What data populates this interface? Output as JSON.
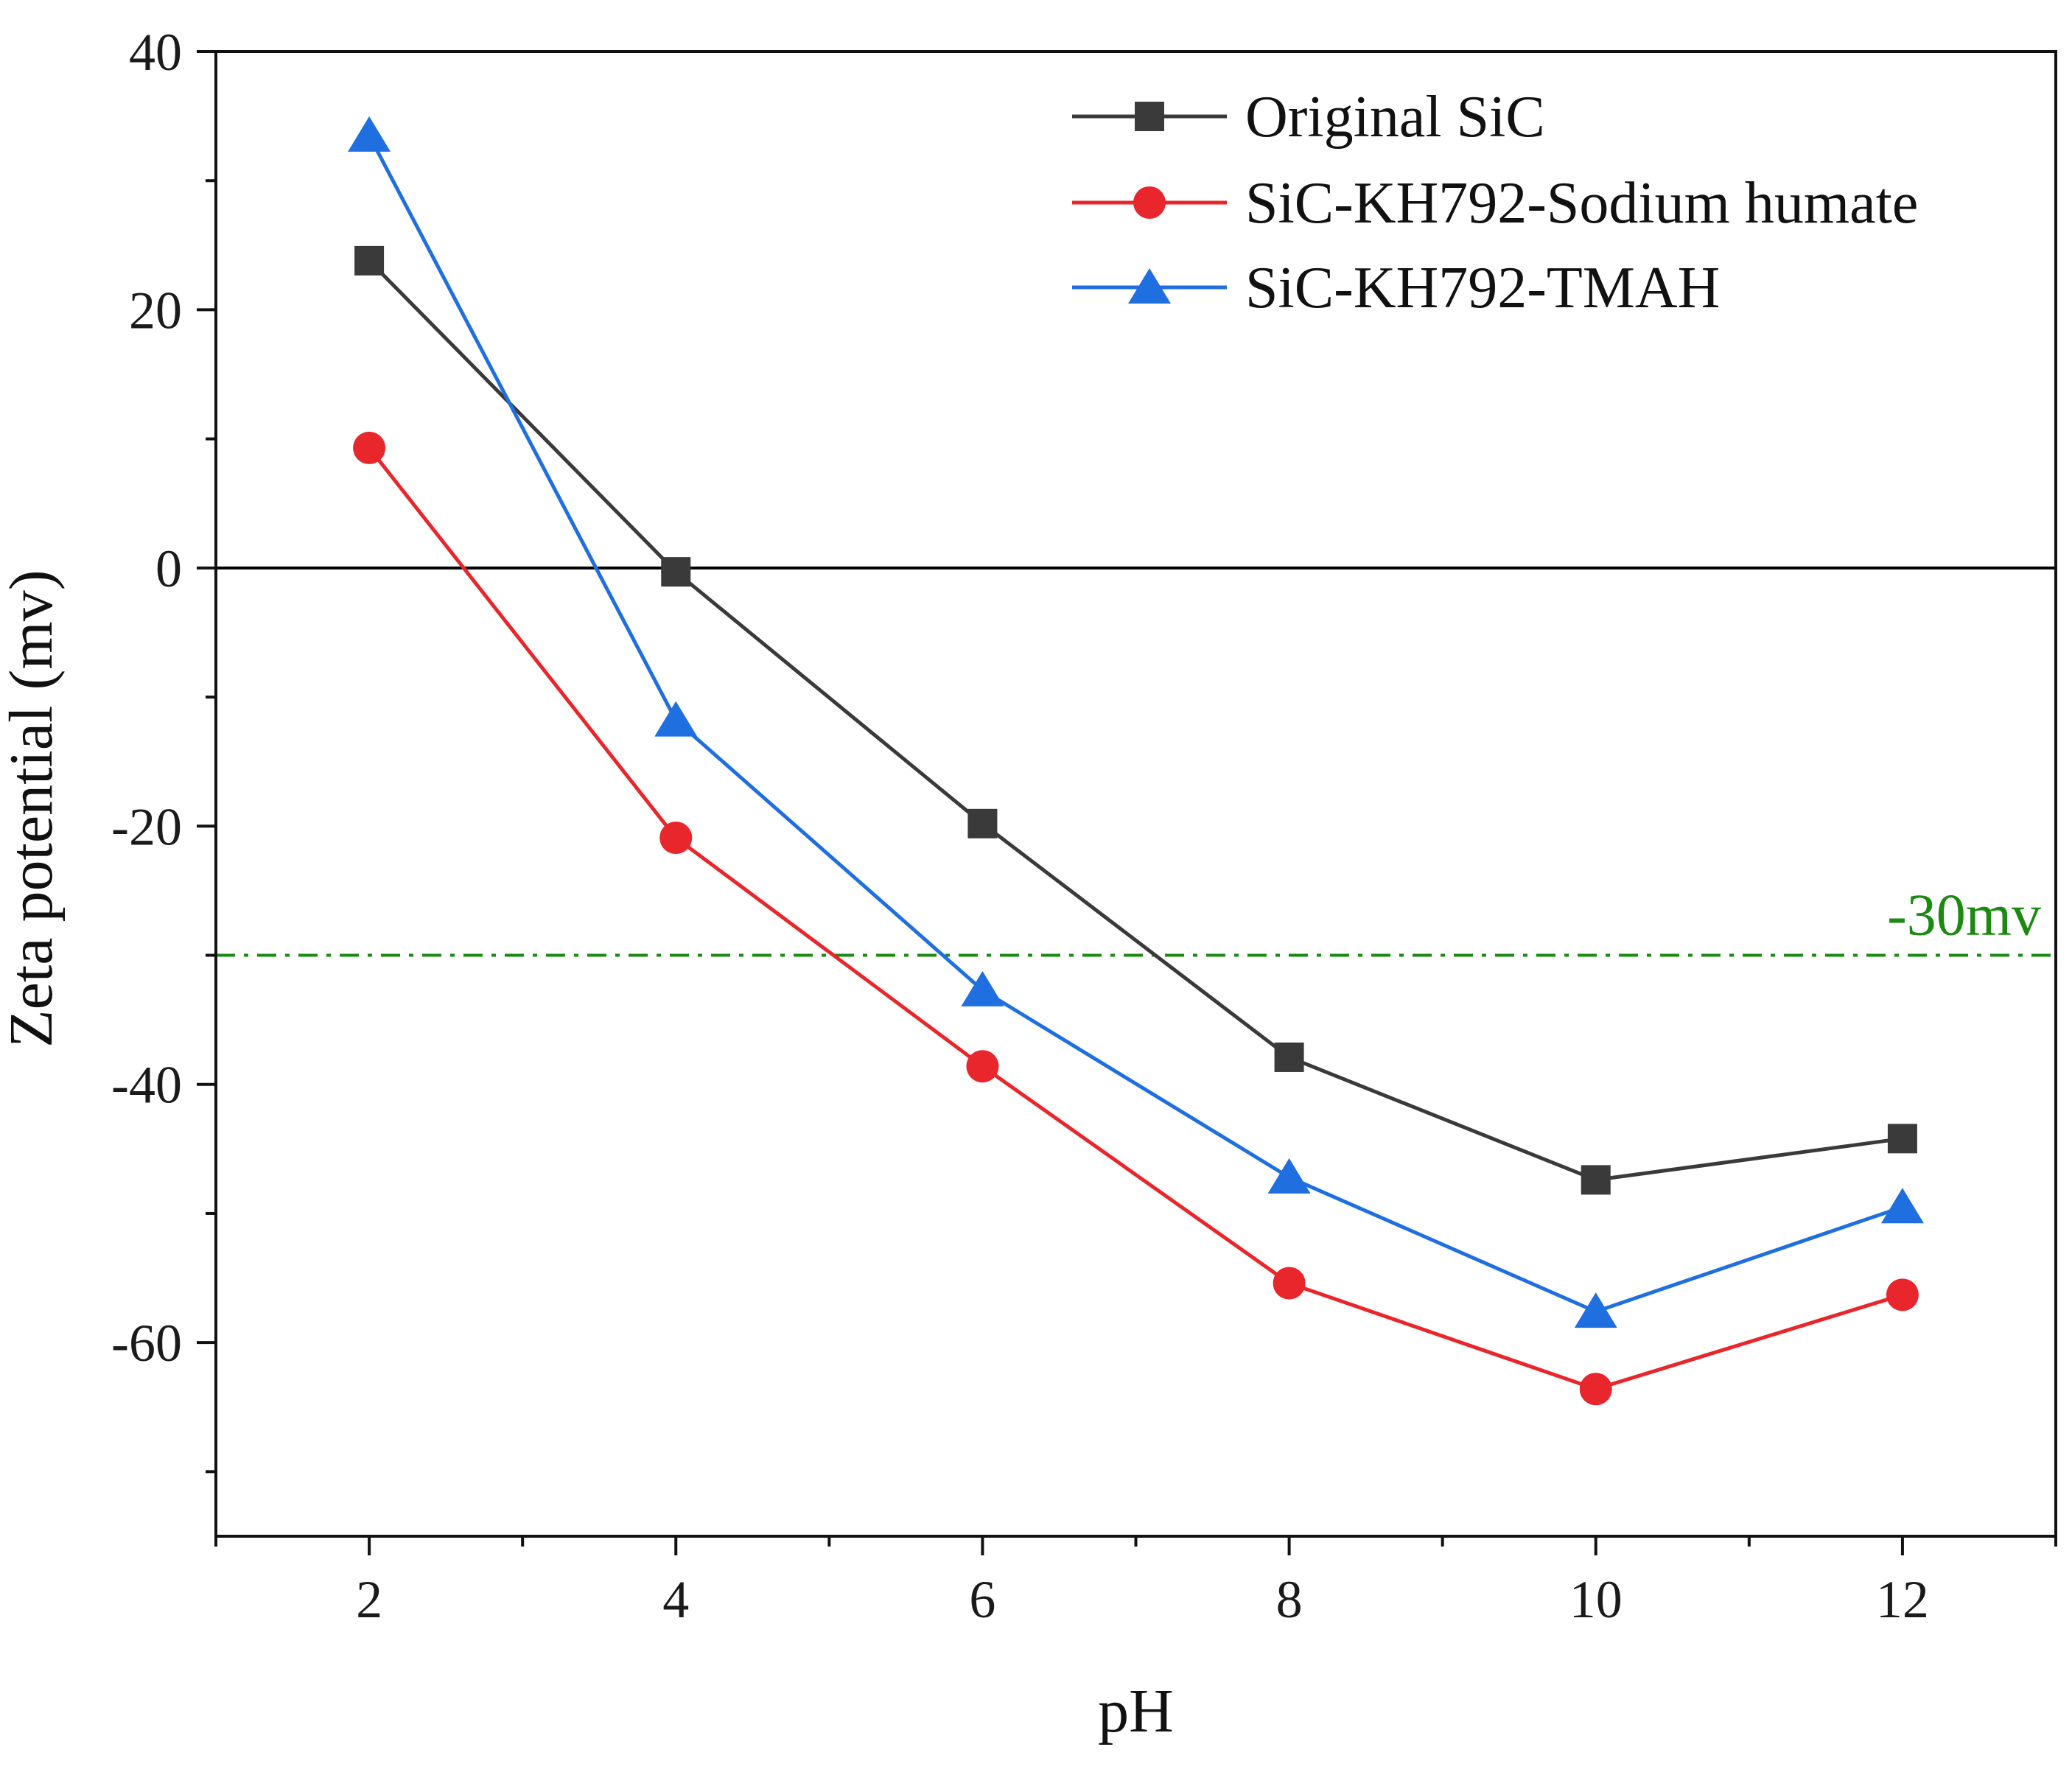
{
  "chart_data": {
    "type": "line",
    "title": "",
    "xlabel": "pH",
    "ylabel": "Zeta potential (mv)",
    "xlim": [
      1,
      13
    ],
    "ylim": [
      -75,
      40
    ],
    "x": [
      2,
      4,
      6,
      8,
      10,
      12
    ],
    "x_ticks": [
      2,
      4,
      6,
      8,
      10,
      12
    ],
    "y_ticks": [
      40,
      20,
      0,
      -20,
      -40,
      -60
    ],
    "legend_position": "top-right",
    "series": [
      {
        "name": "Original SiC",
        "color": "#3a3a3a",
        "marker": "square",
        "values": [
          23.8,
          -0.3,
          -19.8,
          -37.9,
          -47.4,
          -44.2
        ]
      },
      {
        "name": "SiC-KH792-Sodium humate",
        "color": "#e8262b",
        "marker": "circle",
        "values": [
          9.3,
          -20.9,
          -38.6,
          -55.4,
          -63.6,
          -56.3
        ]
      },
      {
        "name": "SiC-KH792-TMAH",
        "color": "#1f6fe0",
        "marker": "triangle",
        "values": [
          33.5,
          -11.8,
          -32.7,
          -47.2,
          -57.6,
          -49.5
        ]
      }
    ],
    "reference_lines": [
      {
        "y": 0,
        "color": "#000000",
        "style": "solid",
        "label": ""
      },
      {
        "y": -30,
        "color": "#1a8a10",
        "style": "dash-dot",
        "label": "-30mv"
      }
    ]
  }
}
